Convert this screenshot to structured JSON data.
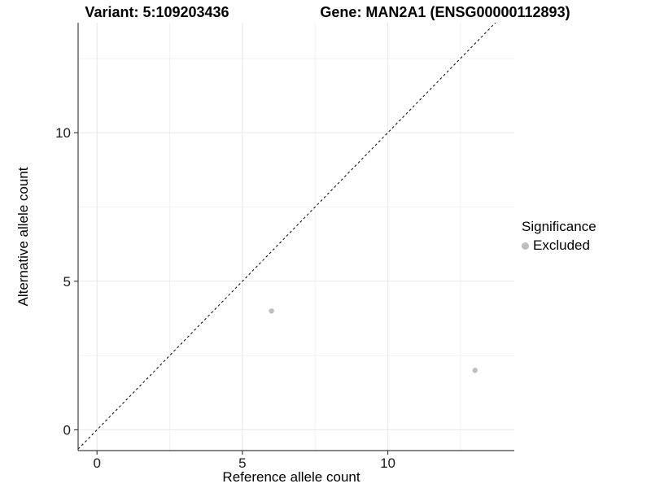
{
  "chart_data": {
    "type": "scatter",
    "titles": [
      "Variant: 5:109203436",
      "Gene: MAN2A1 (ENSG00000112893)"
    ],
    "xlabel": "Reference allele count",
    "ylabel": "Alternative allele count",
    "x_ticks": [
      0,
      5,
      10
    ],
    "y_ticks": [
      0,
      5,
      10
    ],
    "x_minor_gridlines": [
      2.5,
      7.5,
      12.5
    ],
    "y_minor_gridlines": [
      2.5,
      7.5,
      12.5
    ],
    "xlim": [
      -0.65,
      14.35
    ],
    "ylim": [
      -0.7,
      13.7
    ],
    "grid": true,
    "legend": {
      "title": "Significance",
      "position": "right",
      "items": [
        "Excluded"
      ]
    },
    "series": [
      {
        "name": "Excluded",
        "color": "#bebebe",
        "points": [
          {
            "x": 6,
            "y": 4
          },
          {
            "x": 13,
            "y": 2
          }
        ]
      }
    ],
    "reference_line": {
      "type": "identity",
      "slope": 1,
      "intercept": 0,
      "style": "dashed",
      "color": "#000000"
    }
  },
  "colors": {
    "point": "#bebebe",
    "grid_major": "#e7e7e7",
    "grid_minor": "#f1f1f1",
    "axis_line": "#404040",
    "dashed_line": "#000000",
    "text": "#000000"
  }
}
